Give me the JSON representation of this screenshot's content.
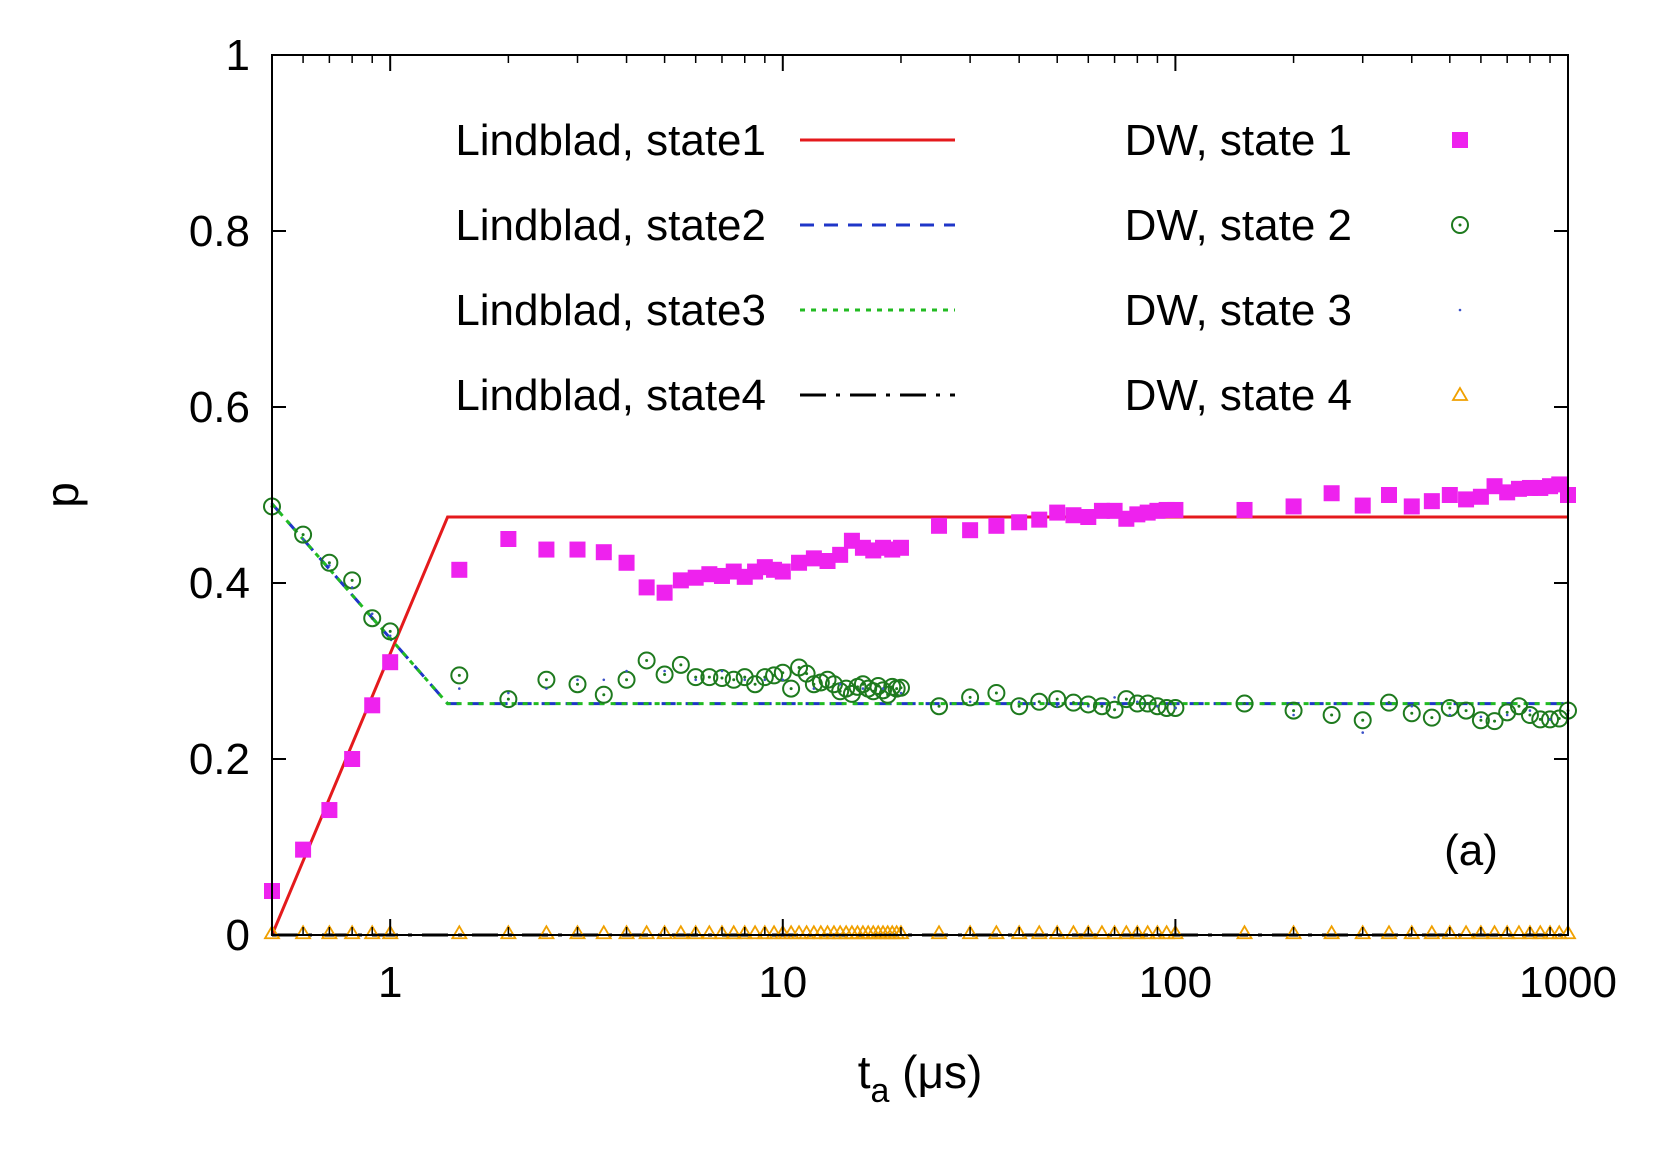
{
  "chart_data": {
    "type": "line",
    "title": "",
    "panel_label": "(a)",
    "xlabel": "t",
    "xlabel_sub": "a",
    "xlabel_unit": " (μs)",
    "ylabel": "p",
    "xscale": "log",
    "xlim": [
      0.5,
      1000
    ],
    "ylim": [
      0,
      1
    ],
    "grid": false,
    "legend_position": "top",
    "xticks": [
      {
        "value": 1,
        "label": "1"
      },
      {
        "value": 10,
        "label": "10"
      },
      {
        "value": 100,
        "label": "100"
      },
      {
        "value": 1000,
        "label": "1000"
      }
    ],
    "yticks": [
      {
        "value": 0,
        "label": "0"
      },
      {
        "value": 0.2,
        "label": "0.2"
      },
      {
        "value": 0.4,
        "label": "0.4"
      },
      {
        "value": 0.6,
        "label": "0.6"
      },
      {
        "value": 0.8,
        "label": "0.8"
      },
      {
        "value": 1,
        "label": "1"
      }
    ],
    "lines": [
      {
        "name": "Lindblad, state1",
        "color": "#e41a1c",
        "dash": "",
        "x": [
          0.5,
          1.4,
          1000
        ],
        "y": [
          0.0,
          0.475,
          0.475
        ]
      },
      {
        "name": "Lindblad, state2",
        "color": "#1f36c8",
        "dash": "14 10",
        "x": [
          0.5,
          1.4,
          1000
        ],
        "y": [
          0.49,
          0.263,
          0.263
        ]
      },
      {
        "name": "Lindblad, state3",
        "color": "#22bb22",
        "dash": "5 6",
        "x": [
          0.5,
          1.4,
          1000
        ],
        "y": [
          0.49,
          0.263,
          0.263
        ]
      },
      {
        "name": "Lindblad, state4",
        "color": "#000000",
        "dash": "26 10 4 10",
        "x": [
          0.5,
          1000
        ],
        "y": [
          0.0,
          0.0
        ]
      }
    ],
    "points": [
      {
        "name": "DW, state 1",
        "color": "#ee22ee",
        "marker": "filled-square",
        "x": [
          0.5,
          0.6,
          0.7,
          0.8,
          0.9,
          1.0,
          1.5,
          2.0,
          2.5,
          3.0,
          3.5,
          4.0,
          4.5,
          5.0,
          5.5,
          6.0,
          6.5,
          7.0,
          7.5,
          8.0,
          8.5,
          9.0,
          9.5,
          10,
          11,
          12,
          13,
          14,
          15,
          16,
          17,
          18,
          19,
          20,
          25,
          30,
          35,
          40,
          45,
          50,
          55,
          60,
          65,
          70,
          75,
          80,
          85,
          90,
          95,
          100,
          150,
          200,
          250,
          300,
          350,
          400,
          450,
          500,
          550,
          600,
          650,
          700,
          750,
          800,
          850,
          900,
          950,
          1000
        ],
        "y": [
          0.05,
          0.097,
          0.142,
          0.2,
          0.261,
          0.31,
          0.415,
          0.45,
          0.438,
          0.438,
          0.435,
          0.423,
          0.395,
          0.389,
          0.403,
          0.406,
          0.41,
          0.408,
          0.413,
          0.407,
          0.413,
          0.418,
          0.415,
          0.413,
          0.423,
          0.428,
          0.425,
          0.432,
          0.448,
          0.44,
          0.437,
          0.44,
          0.438,
          0.44,
          0.465,
          0.46,
          0.465,
          0.469,
          0.472,
          0.48,
          0.477,
          0.475,
          0.482,
          0.482,
          0.473,
          0.478,
          0.48,
          0.482,
          0.483,
          0.483,
          0.483,
          0.487,
          0.502,
          0.488,
          0.5,
          0.487,
          0.493,
          0.5,
          0.495,
          0.498,
          0.51,
          0.503,
          0.507,
          0.508,
          0.508,
          0.51,
          0.512,
          0.5
        ]
      },
      {
        "name": "DW, state 2",
        "color": "#1e7a1e",
        "marker": "open-circle-dot",
        "x": [
          0.5,
          0.6,
          0.7,
          0.8,
          0.9,
          1.0,
          1.5,
          2.0,
          2.5,
          3.0,
          3.5,
          4.0,
          4.5,
          5.0,
          5.5,
          6.0,
          6.5,
          7.0,
          7.5,
          8.0,
          8.5,
          9.0,
          9.5,
          10,
          10.5,
          11,
          11.5,
          12,
          12.5,
          13,
          13.5,
          14,
          14.5,
          15,
          15.5,
          16,
          16.5,
          17,
          17.5,
          18,
          18.5,
          19,
          19.5,
          20,
          25,
          30,
          35,
          40,
          45,
          50,
          55,
          60,
          65,
          70,
          75,
          80,
          85,
          90,
          95,
          100,
          150,
          200,
          250,
          300,
          350,
          400,
          450,
          500,
          550,
          600,
          650,
          700,
          750,
          800,
          850,
          900,
          950,
          1000
        ],
        "y": [
          0.487,
          0.455,
          0.423,
          0.403,
          0.36,
          0.345,
          0.295,
          0.268,
          0.29,
          0.285,
          0.273,
          0.29,
          0.312,
          0.296,
          0.307,
          0.293,
          0.293,
          0.292,
          0.29,
          0.293,
          0.285,
          0.293,
          0.295,
          0.298,
          0.28,
          0.304,
          0.297,
          0.285,
          0.287,
          0.29,
          0.285,
          0.277,
          0.28,
          0.274,
          0.282,
          0.285,
          0.28,
          0.277,
          0.283,
          0.278,
          0.273,
          0.282,
          0.28,
          0.281,
          0.26,
          0.27,
          0.275,
          0.26,
          0.265,
          0.268,
          0.264,
          0.262,
          0.26,
          0.256,
          0.268,
          0.263,
          0.263,
          0.26,
          0.258,
          0.258,
          0.263,
          0.255,
          0.25,
          0.244,
          0.264,
          0.252,
          0.247,
          0.258,
          0.255,
          0.244,
          0.243,
          0.253,
          0.26,
          0.25,
          0.245,
          0.245,
          0.246,
          0.255
        ]
      },
      {
        "name": "DW, state 3",
        "color": "#3a50c8",
        "marker": "dot",
        "x": [
          0.5,
          0.6,
          0.7,
          0.8,
          0.9,
          1.0,
          1.5,
          2.0,
          2.5,
          3.0,
          3.5,
          4.0,
          5.0,
          6.0,
          7.0,
          8.0,
          9.0,
          10,
          12,
          14,
          16,
          18,
          20,
          30,
          40,
          50,
          60,
          70,
          80,
          90,
          100,
          200,
          300,
          400,
          500,
          600,
          700,
          800,
          900,
          1000
        ],
        "y": [
          0.49,
          0.45,
          0.42,
          0.395,
          0.365,
          0.34,
          0.28,
          0.275,
          0.28,
          0.29,
          0.29,
          0.3,
          0.3,
          0.29,
          0.3,
          0.29,
          0.29,
          0.29,
          0.28,
          0.285,
          0.28,
          0.28,
          0.275,
          0.265,
          0.265,
          0.26,
          0.26,
          0.27,
          0.265,
          0.26,
          0.258,
          0.25,
          0.23,
          0.26,
          0.25,
          0.248,
          0.25,
          0.255,
          0.245,
          0.252
        ]
      },
      {
        "name": "DW, state 4",
        "color": "#f0a000",
        "marker": "open-triangle",
        "x": [
          0.5,
          0.6,
          0.7,
          0.8,
          0.9,
          1.0,
          1.5,
          2.0,
          2.5,
          3.0,
          3.5,
          4.0,
          4.5,
          5.0,
          5.5,
          6.0,
          6.5,
          7.0,
          7.5,
          8.0,
          8.5,
          9.0,
          9.5,
          10,
          10.5,
          11,
          11.5,
          12,
          12.5,
          13,
          13.5,
          14,
          14.5,
          15,
          15.5,
          16,
          16.5,
          17,
          17.5,
          18,
          18.5,
          19,
          19.5,
          20,
          25,
          30,
          35,
          40,
          45,
          50,
          55,
          60,
          65,
          70,
          75,
          80,
          85,
          90,
          95,
          100,
          150,
          200,
          250,
          300,
          350,
          400,
          450,
          500,
          550,
          600,
          650,
          700,
          750,
          800,
          850,
          900,
          950,
          1000
        ],
        "y": [
          0.002,
          0.002,
          0.002,
          0.002,
          0.002,
          0.002,
          0.002,
          0.002,
          0.002,
          0.002,
          0.002,
          0.002,
          0.002,
          0.002,
          0.002,
          0.002,
          0.002,
          0.002,
          0.002,
          0.002,
          0.002,
          0.002,
          0.002,
          0.002,
          0.002,
          0.002,
          0.002,
          0.002,
          0.002,
          0.002,
          0.002,
          0.002,
          0.002,
          0.002,
          0.002,
          0.002,
          0.002,
          0.002,
          0.002,
          0.002,
          0.002,
          0.002,
          0.002,
          0.002,
          0.002,
          0.002,
          0.002,
          0.002,
          0.002,
          0.002,
          0.002,
          0.002,
          0.002,
          0.002,
          0.002,
          0.002,
          0.002,
          0.002,
          0.002,
          0.002,
          0.002,
          0.002,
          0.002,
          0.002,
          0.002,
          0.002,
          0.002,
          0.002,
          0.002,
          0.002,
          0.002,
          0.002,
          0.002,
          0.002,
          0.002,
          0.002,
          0.002,
          0.002
        ]
      }
    ]
  }
}
